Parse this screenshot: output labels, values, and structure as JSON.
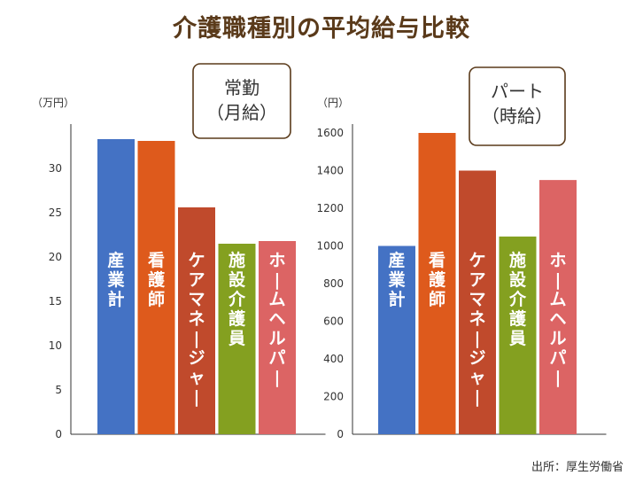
{
  "title": "介護職種別の平均給与比較",
  "source": "出所：厚生労働省",
  "colors": {
    "title": "#5a3a1a",
    "axis": "#333333",
    "label_box_border": "#5a3a1a"
  },
  "chart_data": [
    {
      "type": "bar",
      "title": "常勤（月給）",
      "title_lines": [
        "常勤",
        "（月給）"
      ],
      "ylabel": "（万円）",
      "ylim": [
        0,
        34
      ],
      "yticks": [
        0,
        5,
        10,
        15,
        20,
        25,
        30
      ],
      "categories": [
        "産業計",
        "看護師",
        "ケアマネージャー",
        "施設介護員",
        "ホームヘルパー"
      ],
      "values": [
        33.3,
        33.1,
        25.6,
        21.5,
        21.8
      ],
      "bar_colors": [
        "#4472c4",
        "#de5a1c",
        "#c04a2c",
        "#84a020",
        "#dc6464"
      ]
    },
    {
      "type": "bar",
      "title": "パート（時給）",
      "title_lines": [
        "パート",
        "（時給）"
      ],
      "ylabel": "（円）",
      "ylim": [
        0,
        1600
      ],
      "yticks": [
        0,
        200,
        400,
        600,
        800,
        1000,
        1200,
        1400,
        1600
      ],
      "categories": [
        "産業計",
        "看護師",
        "ケアマネージャー",
        "施設介護員",
        "ホームヘルパー"
      ],
      "values": [
        1000,
        1600,
        1400,
        1050,
        1350
      ],
      "bar_colors": [
        "#4472c4",
        "#de5a1c",
        "#c04a2c",
        "#84a020",
        "#dc6464"
      ]
    }
  ]
}
